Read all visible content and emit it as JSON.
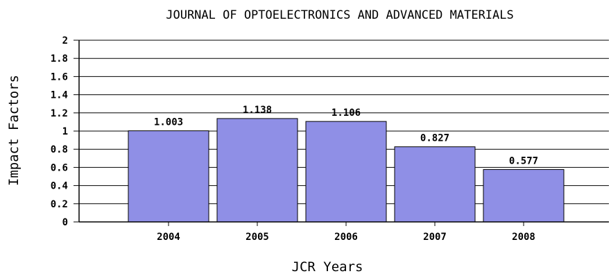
{
  "chart_data": {
    "type": "bar",
    "title": "JOURNAL OF OPTOELECTRONICS AND ADVANCED MATERIALS",
    "xlabel": "JCR Years",
    "ylabel": "Impact Factors",
    "categories": [
      "2004",
      "2005",
      "2006",
      "2007",
      "2008"
    ],
    "values": [
      1.003,
      1.138,
      1.106,
      0.827,
      0.577
    ],
    "value_labels": [
      "1.003",
      "1.138",
      "1.106",
      "0.827",
      "0.577"
    ],
    "yticks": [
      "0",
      "0.2",
      "0.4",
      "0.6",
      "0.8",
      "1",
      "1.2",
      "1.4",
      "1.6",
      "1.8",
      "2"
    ],
    "ylim": [
      0,
      2
    ],
    "grid": true,
    "legend": "none",
    "bar_color": "#8f8fe6",
    "bar_edge_color": "#000000"
  }
}
